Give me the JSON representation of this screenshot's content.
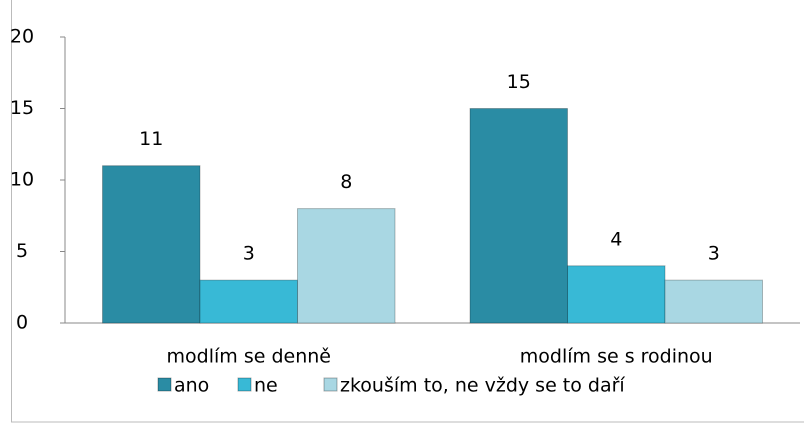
{
  "chart_data": {
    "type": "bar",
    "categories": [
      "modlím se denně",
      "modlím se s rodinou"
    ],
    "series": [
      {
        "name": "ano",
        "color": "#2a8ca4",
        "values": [
          11,
          15
        ]
      },
      {
        "name": "ne",
        "color": "#38b9d6",
        "values": [
          3,
          4
        ]
      },
      {
        "name": "zkouším to, ne vždy se to daří",
        "color": "#a9d7e3",
        "values": [
          8,
          3
        ]
      }
    ],
    "ylim": [
      0,
      20
    ],
    "yticks": [
      0,
      5,
      10,
      15,
      20
    ],
    "grid": false,
    "data_labels": true,
    "legend": "bottom"
  }
}
